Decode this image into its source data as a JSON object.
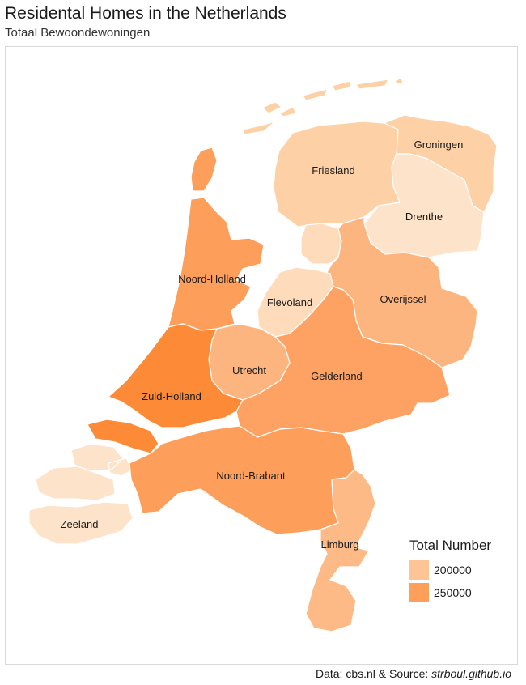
{
  "header": {
    "title": "Residental Homes in the Netherlands",
    "subtitle": "Totaal Bewoondewoningen"
  },
  "colors": {
    "groningen": "#fdd0a5",
    "friesland": "#fdd0a5",
    "drenthe": "#fee3cb",
    "overijssel": "#fdb57f",
    "flevoland": "#fedcbb",
    "gelderland": "#fda262",
    "utrecht": "#fdb57f",
    "noord_holland": "#fd9e5a",
    "zuid_holland": "#fd8a36",
    "zeeland": "#fee3cb",
    "noord_brabant": "#fd9e5a",
    "limburg": "#fdba86",
    "water": "#ffffff"
  },
  "provinces": {
    "groningen": "Groningen",
    "friesland": "Friesland",
    "drenthe": "Drenthe",
    "overijssel": "Overijssel",
    "flevoland": "Flevoland",
    "gelderland": "Gelderland",
    "utrecht": "Utrecht",
    "noord_holland": "Noord-Holland",
    "zuid_holland": "Zuid-Holland",
    "zeeland": "Zeeland",
    "noord_brabant": "Noord-Brabant",
    "limburg": "Limburg"
  },
  "legend": {
    "title": "Total Number",
    "items": [
      {
        "label": "200000",
        "color": "#fdc596"
      },
      {
        "label": "250000",
        "color": "#fd9e5a"
      }
    ]
  },
  "caption": {
    "prefix": "Data: cbs.nl & Source: ",
    "source": "strboul.github.io"
  }
}
